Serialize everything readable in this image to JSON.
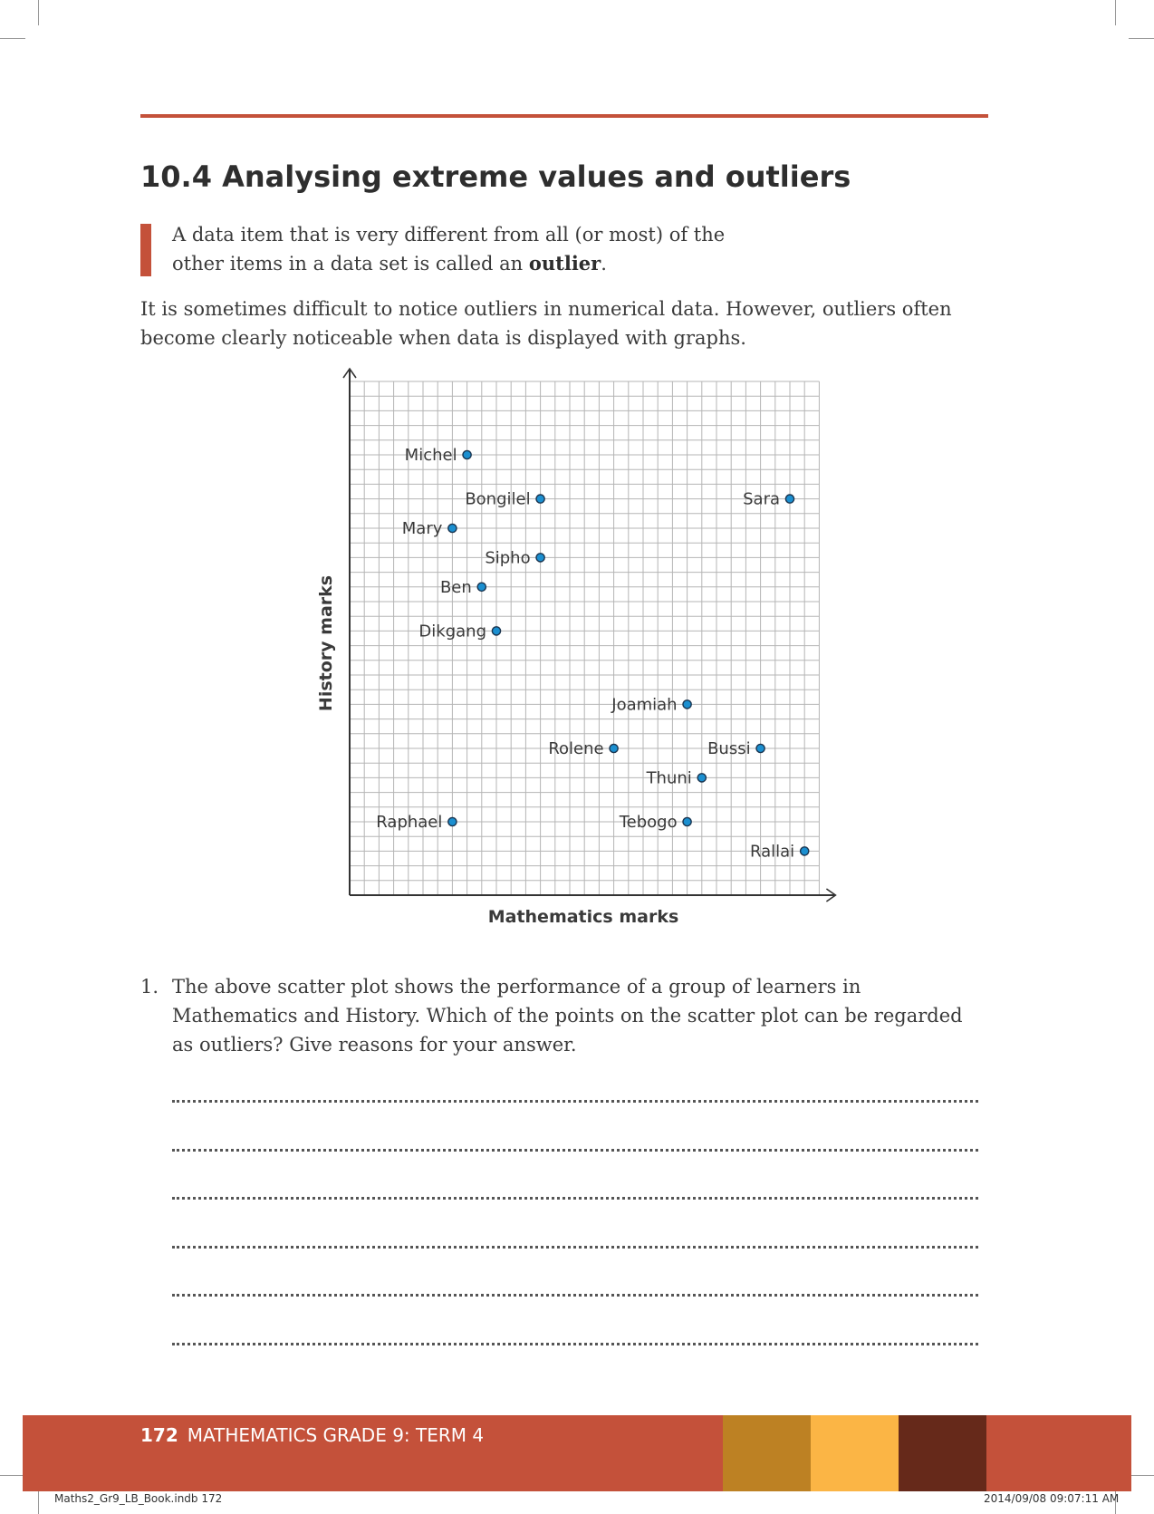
{
  "page": {
    "section_title": "10.4 Analysing extreme values and outliers",
    "definition_before": "A data item that is very different from all (or most) of the other items in a data set is called an ",
    "definition_term": "outlier",
    "definition_after": ".",
    "intro": "It is sometimes difficult to notice outliers in numerical data. However, outliers often become clearly noticeable when data is displayed with graphs.",
    "question_number": "1.",
    "question_text": "The above scatter plot shows the performance of a group of learners in Mathematics and History. Which of the points on the scatter plot can be regarded as outliers? Give reasons for your answer.",
    "answer_lines": 6
  },
  "footer": {
    "page_number": "172",
    "book_title": "MATHEMATICS GRADE 9: TERM 4",
    "swatch_colors": [
      "#bd8123",
      "#fbb545",
      "#66291a"
    ],
    "slug_left": "Maths2_Gr9_LB_Book.indb   172",
    "slug_right": "2014/09/08   09:07:11 AM"
  },
  "chart_data": {
    "type": "scatter",
    "xlabel": "Mathematics marks",
    "ylabel": "History marks",
    "grid": true,
    "xlim": [
      0,
      32
    ],
    "ylim": [
      0,
      35
    ],
    "point_color": "#1b8fd0",
    "points": [
      {
        "name": "Michel",
        "x": 8,
        "y": 30
      },
      {
        "name": "Bongilel",
        "x": 13,
        "y": 27
      },
      {
        "name": "Sara",
        "x": 30,
        "y": 27
      },
      {
        "name": "Mary",
        "x": 7,
        "y": 25
      },
      {
        "name": "Sipho",
        "x": 13,
        "y": 23
      },
      {
        "name": "Ben",
        "x": 9,
        "y": 21
      },
      {
        "name": "Dikgang",
        "x": 10,
        "y": 18
      },
      {
        "name": "Joamiah",
        "x": 23,
        "y": 13
      },
      {
        "name": "Rolene",
        "x": 18,
        "y": 10
      },
      {
        "name": "Bussi",
        "x": 28,
        "y": 10
      },
      {
        "name": "Thuni",
        "x": 24,
        "y": 8
      },
      {
        "name": "Raphael",
        "x": 7,
        "y": 5
      },
      {
        "name": "Tebogo",
        "x": 23,
        "y": 5
      },
      {
        "name": "Rallai",
        "x": 31,
        "y": 3
      }
    ]
  }
}
